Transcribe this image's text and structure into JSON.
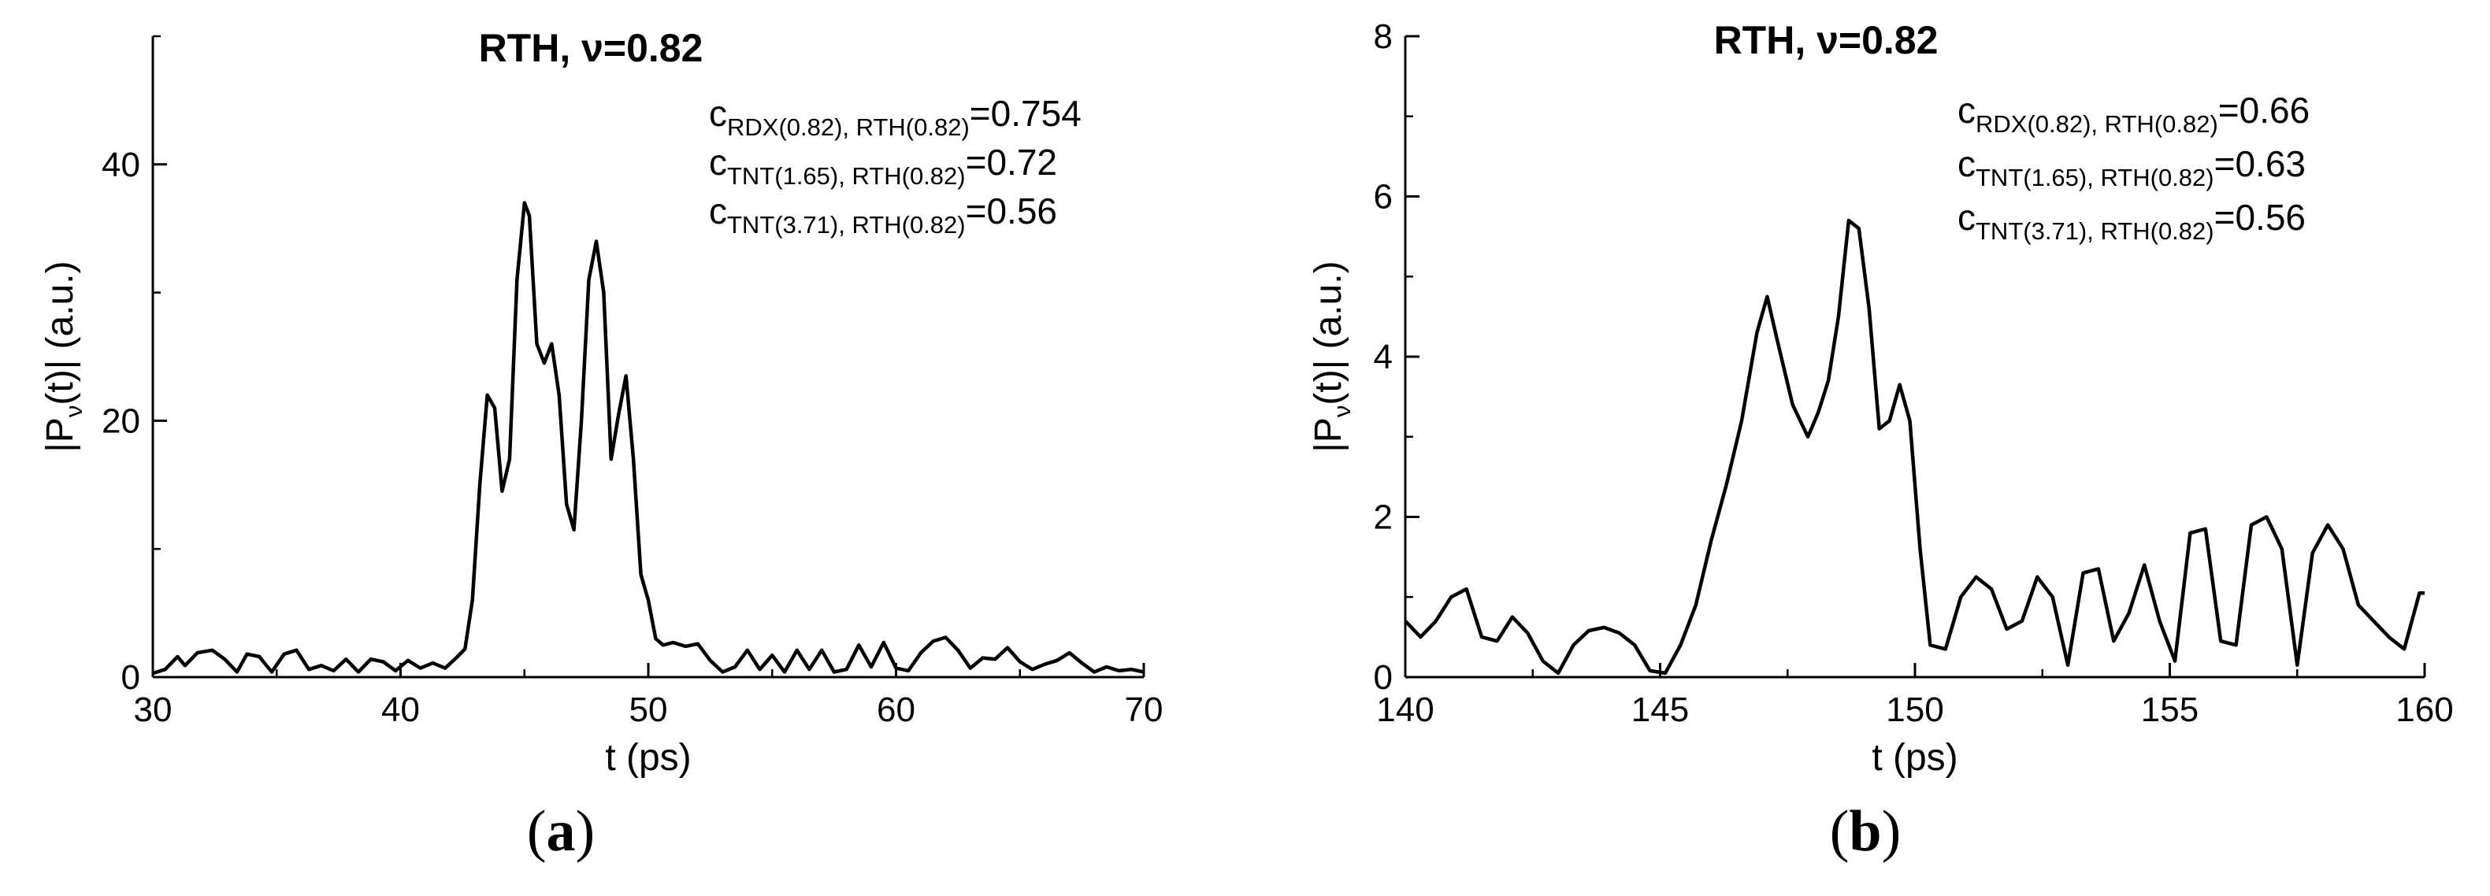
{
  "chart_data": [
    {
      "type": "line",
      "panel_label": "a",
      "title": "RTH, ν=0.82",
      "xlabel": "t (ps)",
      "ylabel": {
        "main": "|P",
        "sub": "ν",
        "rest": "(t)| (a.u.)"
      },
      "xlim": [
        30,
        70
      ],
      "ylim": [
        0,
        50
      ],
      "x_ticks": [
        30,
        40,
        50,
        60,
        70
      ],
      "y_ticks": [
        0,
        20,
        40
      ],
      "grid": false,
      "annotations": [
        {
          "sym": "c",
          "sub": "RDX(0.82), RTH(0.82)",
          "value": "=0.754"
        },
        {
          "sym": "c",
          "sub": "TNT(1.65), RTH(0.82)",
          "value": "=0.72"
        },
        {
          "sym": "c",
          "sub": "TNT(3.71), RTH(0.82)",
          "value": "=0.56"
        }
      ],
      "series": [
        {
          "x": [
            30,
            30.5,
            31,
            31.3,
            31.8,
            32.4,
            32.9,
            33.4,
            33.8,
            34.3,
            34.8,
            35.3,
            35.8,
            36.3,
            36.8,
            37.3,
            37.8,
            38.3,
            38.8,
            39.3,
            39.8,
            40.3,
            40.8,
            41.3,
            41.8,
            42.3,
            42.6,
            42.9,
            43.2,
            43.5,
            43.8,
            44.1,
            44.4,
            44.7,
            45,
            45.2,
            45.5,
            45.8,
            46.1,
            46.4,
            46.7,
            47,
            47.3,
            47.6,
            47.9,
            48.2,
            48.5,
            48.8,
            49.1,
            49.4,
            49.7,
            50,
            50.3,
            50.6,
            51,
            51.5,
            52,
            52.5,
            53,
            53.5,
            54,
            54.5,
            55,
            55.5,
            56,
            56.5,
            57,
            57.5,
            58,
            58.5,
            59,
            59.5,
            60,
            60.5,
            61,
            61.5,
            62,
            62.5,
            63,
            63.5,
            64,
            64.5,
            65,
            65.5,
            66,
            66.5,
            67,
            67.5,
            68,
            68.5,
            69,
            69.5,
            70
          ],
          "y": [
            0.3,
            0.6,
            1.6,
            0.9,
            1.9,
            2.1,
            1.4,
            0.4,
            1.8,
            1.6,
            0.4,
            1.8,
            2.1,
            0.6,
            0.9,
            0.5,
            1.4,
            0.4,
            1.4,
            1.2,
            0.5,
            1.3,
            0.7,
            1.1,
            0.7,
            1.6,
            2.2,
            6,
            15,
            22,
            21,
            14.5,
            17,
            31,
            37,
            36,
            26,
            24.5,
            26,
            22,
            13.5,
            11.5,
            20,
            31,
            34,
            30,
            17,
            20.5,
            23.5,
            17,
            8,
            6,
            3,
            2.5,
            2.7,
            2.4,
            2.6,
            1.3,
            0.4,
            0.8,
            2.1,
            0.6,
            1.7,
            0.4,
            2.1,
            0.6,
            2.1,
            0.4,
            0.6,
            2.5,
            0.8,
            2.7,
            0.7,
            0.5,
            1.9,
            2.8,
            3.1,
            2.1,
            0.7,
            1.5,
            1.4,
            2.3,
            1.2,
            0.6,
            1,
            1.3,
            1.9,
            1.1,
            0.4,
            0.8,
            0.5,
            0.6,
            0.4
          ]
        }
      ]
    },
    {
      "type": "line",
      "panel_label": "b",
      "title": "RTH, ν=0.82",
      "xlabel": "t (ps)",
      "ylabel": {
        "main": "|P",
        "sub": "ν",
        "rest": "(t)| (a.u.)"
      },
      "xlim": [
        140,
        160
      ],
      "ylim": [
        0,
        8
      ],
      "x_ticks": [
        140,
        145,
        150,
        155,
        160
      ],
      "y_ticks": [
        0,
        2,
        4,
        6,
        8
      ],
      "grid": false,
      "annotations": [
        {
          "sym": "c",
          "sub": "RDX(0.82), RTH(0.82)",
          "value": "=0.66"
        },
        {
          "sym": "c",
          "sub": "TNT(1.65), RTH(0.82)",
          "value": "=0.63"
        },
        {
          "sym": "c",
          "sub": "TNT(3.71), RTH(0.82)",
          "value": "=0.56"
        }
      ],
      "series": [
        {
          "x": [
            140,
            140.3,
            140.6,
            140.9,
            141.2,
            141.5,
            141.8,
            142.1,
            142.4,
            142.7,
            143,
            143.3,
            143.6,
            143.9,
            144.2,
            144.5,
            144.8,
            145.1,
            145.4,
            145.7,
            146,
            146.3,
            146.6,
            146.9,
            147.1,
            147.3,
            147.6,
            147.9,
            148.1,
            148.3,
            148.5,
            148.7,
            148.9,
            149.1,
            149.3,
            149.5,
            149.7,
            149.9,
            150.1,
            150.3,
            150.6,
            150.9,
            151.2,
            151.5,
            151.8,
            152.1,
            152.4,
            152.7,
            153,
            153.3,
            153.6,
            153.9,
            154.2,
            154.5,
            154.8,
            155.1,
            155.4,
            155.7,
            156,
            156.3,
            156.6,
            156.9,
            157.2,
            157.5,
            157.8,
            158.1,
            158.4,
            158.7,
            159,
            159.3,
            159.6,
            159.9,
            160
          ],
          "y": [
            0.7,
            0.5,
            0.7,
            1,
            1.1,
            0.5,
            0.45,
            0.75,
            0.55,
            0.2,
            0.05,
            0.4,
            0.58,
            0.62,
            0.55,
            0.4,
            0.08,
            0.05,
            0.4,
            0.9,
            1.7,
            2.4,
            3.2,
            4.3,
            4.75,
            4.2,
            3.4,
            3.0,
            3.3,
            3.7,
            4.5,
            5.7,
            5.6,
            4.6,
            3.1,
            3.2,
            3.65,
            3.2,
            1.6,
            0.4,
            0.35,
            1.0,
            1.25,
            1.1,
            0.6,
            0.7,
            1.25,
            1.0,
            0.15,
            1.3,
            1.35,
            0.45,
            0.8,
            1.4,
            0.7,
            0.2,
            1.8,
            1.85,
            0.45,
            0.4,
            1.9,
            2.0,
            1.6,
            0.15,
            1.55,
            1.9,
            1.6,
            0.9,
            0.7,
            0.5,
            0.35,
            1.05,
            1.05
          ]
        }
      ]
    }
  ]
}
